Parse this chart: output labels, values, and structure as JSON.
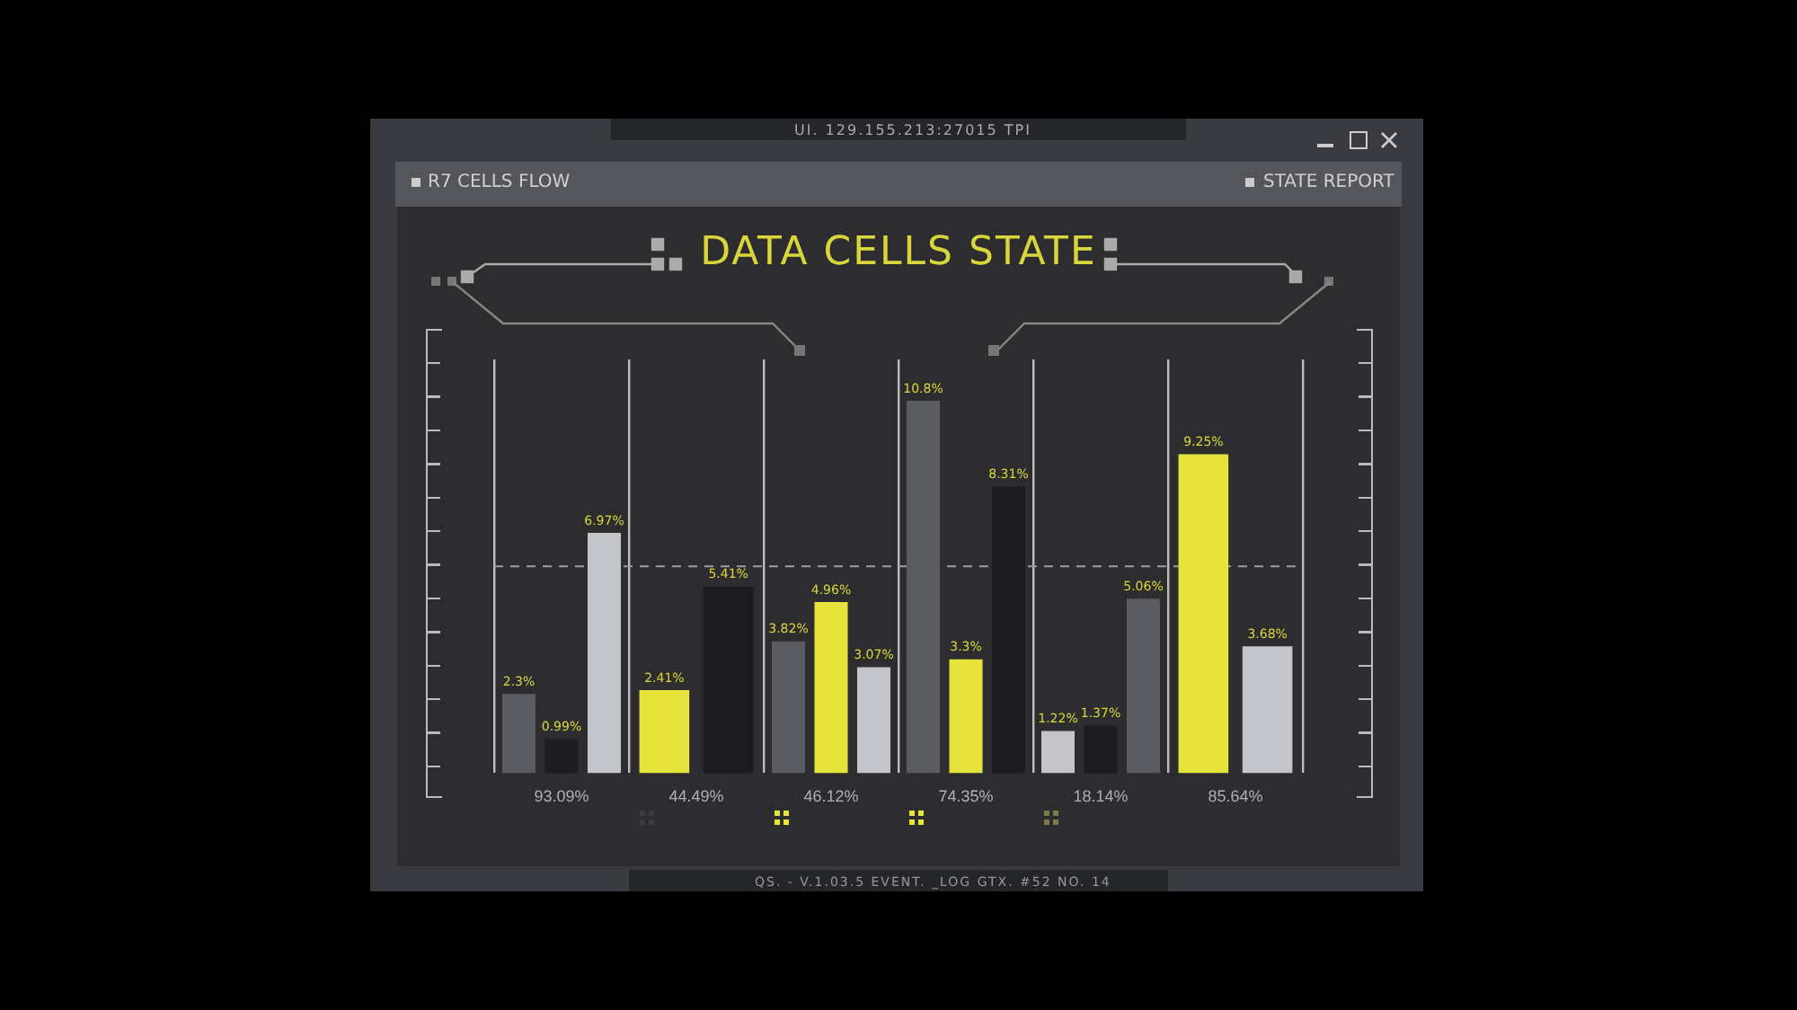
{
  "chart_data": {
    "type": "bar",
    "title": "DATA CELLS STATE",
    "grid": "x",
    "legend": false,
    "tick_labels": "x",
    "categories": [
      "93.09%",
      "44.49%",
      "46.12%",
      "74.35%",
      "18.14%",
      "85.64%"
    ],
    "series": [
      {
        "values": [
          2.3,
          2.41,
          3.82,
          10.8,
          1.22,
          9.25
        ],
        "colors": [
          "#5b5c61",
          "#e6e33a",
          "#5b5c61",
          "#5b5c61",
          "#c4c5ca",
          "#e6e33a"
        ],
        "value_labels": [
          "2.3%",
          "2.41%",
          "3.82%",
          "10.8%",
          "1.22%",
          "9.25%"
        ]
      },
      {
        "values": [
          null,
          null,
          4.96,
          null,
          null,
          null
        ],
        "colors": [
          null,
          null,
          "#e6e33a",
          null,
          null,
          null
        ],
        "value_labels": [
          null,
          null,
          "4.96%",
          null,
          null,
          null
        ]
      },
      {
        "values": [
          0.99,
          5.41,
          3.07,
          3.3,
          1.37,
          3.68
        ],
        "colors": [
          "#1c1c1e",
          "#1c1c1e",
          "#c4c5ca",
          "#e6e33a",
          "#1c1c1e",
          "#c4c5ca"
        ],
        "value_labels": [
          "0.99%",
          "5.41%",
          "3.07%",
          "3.3%",
          "1.37%",
          "3.68%"
        ]
      },
      {
        "values": [
          6.97,
          null,
          null,
          8.31,
          5.06,
          null
        ],
        "colors": [
          "#c4c5ca",
          null,
          null,
          "#1c1c1e",
          "#5b5c61",
          null
        ],
        "value_labels": [
          "6.97%",
          null,
          null,
          "8.31%",
          "5.06%",
          null
        ]
      }
    ],
    "ref_lines": [
      {
        "axis": "y",
        "value": 6,
        "line_style": "dashed",
        "color": "#a0a0a4"
      }
    ],
    "annotations": [
      "UI.  129.155.213:27015  TPI",
      "R7 CELLS FLOW",
      "STATE REPORT",
      "QS. - V.1.03.5 EVENT. _LOG GTX. #52 NO. 14"
    ]
  }
}
